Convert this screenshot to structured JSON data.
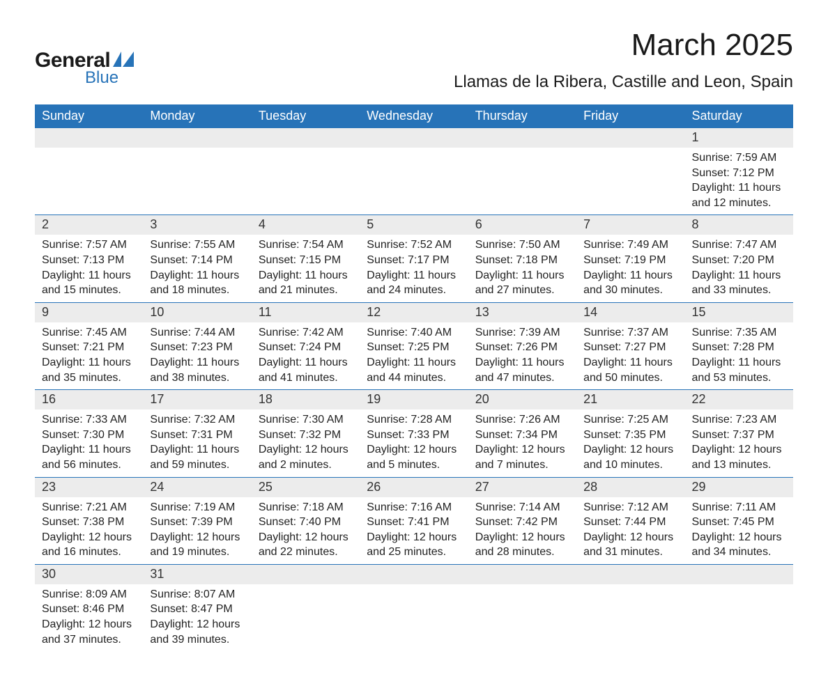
{
  "logo": {
    "general": "General",
    "blue": "Blue",
    "accent_color": "#2773b8"
  },
  "title": "March 2025",
  "subtitle": "Llamas de la Ribera, Castille and Leon, Spain",
  "header_bg": "#2773b8",
  "header_fg": "#ffffff",
  "daynum_bg": "#ececec",
  "border_color": "#2773b8",
  "weekdays": [
    "Sunday",
    "Monday",
    "Tuesday",
    "Wednesday",
    "Thursday",
    "Friday",
    "Saturday"
  ],
  "weeks": [
    [
      null,
      null,
      null,
      null,
      null,
      null,
      {
        "n": 1,
        "sunrise": "7:59 AM",
        "sunset": "7:12 PM",
        "daylight": "11 hours and 12 minutes."
      }
    ],
    [
      {
        "n": 2,
        "sunrise": "7:57 AM",
        "sunset": "7:13 PM",
        "daylight": "11 hours and 15 minutes."
      },
      {
        "n": 3,
        "sunrise": "7:55 AM",
        "sunset": "7:14 PM",
        "daylight": "11 hours and 18 minutes."
      },
      {
        "n": 4,
        "sunrise": "7:54 AM",
        "sunset": "7:15 PM",
        "daylight": "11 hours and 21 minutes."
      },
      {
        "n": 5,
        "sunrise": "7:52 AM",
        "sunset": "7:17 PM",
        "daylight": "11 hours and 24 minutes."
      },
      {
        "n": 6,
        "sunrise": "7:50 AM",
        "sunset": "7:18 PM",
        "daylight": "11 hours and 27 minutes."
      },
      {
        "n": 7,
        "sunrise": "7:49 AM",
        "sunset": "7:19 PM",
        "daylight": "11 hours and 30 minutes."
      },
      {
        "n": 8,
        "sunrise": "7:47 AM",
        "sunset": "7:20 PM",
        "daylight": "11 hours and 33 minutes."
      }
    ],
    [
      {
        "n": 9,
        "sunrise": "7:45 AM",
        "sunset": "7:21 PM",
        "daylight": "11 hours and 35 minutes."
      },
      {
        "n": 10,
        "sunrise": "7:44 AM",
        "sunset": "7:23 PM",
        "daylight": "11 hours and 38 minutes."
      },
      {
        "n": 11,
        "sunrise": "7:42 AM",
        "sunset": "7:24 PM",
        "daylight": "11 hours and 41 minutes."
      },
      {
        "n": 12,
        "sunrise": "7:40 AM",
        "sunset": "7:25 PM",
        "daylight": "11 hours and 44 minutes."
      },
      {
        "n": 13,
        "sunrise": "7:39 AM",
        "sunset": "7:26 PM",
        "daylight": "11 hours and 47 minutes."
      },
      {
        "n": 14,
        "sunrise": "7:37 AM",
        "sunset": "7:27 PM",
        "daylight": "11 hours and 50 minutes."
      },
      {
        "n": 15,
        "sunrise": "7:35 AM",
        "sunset": "7:28 PM",
        "daylight": "11 hours and 53 minutes."
      }
    ],
    [
      {
        "n": 16,
        "sunrise": "7:33 AM",
        "sunset": "7:30 PM",
        "daylight": "11 hours and 56 minutes."
      },
      {
        "n": 17,
        "sunrise": "7:32 AM",
        "sunset": "7:31 PM",
        "daylight": "11 hours and 59 minutes."
      },
      {
        "n": 18,
        "sunrise": "7:30 AM",
        "sunset": "7:32 PM",
        "daylight": "12 hours and 2 minutes."
      },
      {
        "n": 19,
        "sunrise": "7:28 AM",
        "sunset": "7:33 PM",
        "daylight": "12 hours and 5 minutes."
      },
      {
        "n": 20,
        "sunrise": "7:26 AM",
        "sunset": "7:34 PM",
        "daylight": "12 hours and 7 minutes."
      },
      {
        "n": 21,
        "sunrise": "7:25 AM",
        "sunset": "7:35 PM",
        "daylight": "12 hours and 10 minutes."
      },
      {
        "n": 22,
        "sunrise": "7:23 AM",
        "sunset": "7:37 PM",
        "daylight": "12 hours and 13 minutes."
      }
    ],
    [
      {
        "n": 23,
        "sunrise": "7:21 AM",
        "sunset": "7:38 PM",
        "daylight": "12 hours and 16 minutes."
      },
      {
        "n": 24,
        "sunrise": "7:19 AM",
        "sunset": "7:39 PM",
        "daylight": "12 hours and 19 minutes."
      },
      {
        "n": 25,
        "sunrise": "7:18 AM",
        "sunset": "7:40 PM",
        "daylight": "12 hours and 22 minutes."
      },
      {
        "n": 26,
        "sunrise": "7:16 AM",
        "sunset": "7:41 PM",
        "daylight": "12 hours and 25 minutes."
      },
      {
        "n": 27,
        "sunrise": "7:14 AM",
        "sunset": "7:42 PM",
        "daylight": "12 hours and 28 minutes."
      },
      {
        "n": 28,
        "sunrise": "7:12 AM",
        "sunset": "7:44 PM",
        "daylight": "12 hours and 31 minutes."
      },
      {
        "n": 29,
        "sunrise": "7:11 AM",
        "sunset": "7:45 PM",
        "daylight": "12 hours and 34 minutes."
      }
    ],
    [
      {
        "n": 30,
        "sunrise": "8:09 AM",
        "sunset": "8:46 PM",
        "daylight": "12 hours and 37 minutes."
      },
      {
        "n": 31,
        "sunrise": "8:07 AM",
        "sunset": "8:47 PM",
        "daylight": "12 hours and 39 minutes."
      },
      null,
      null,
      null,
      null,
      null
    ]
  ],
  "labels": {
    "sunrise": "Sunrise:",
    "sunset": "Sunset:",
    "daylight": "Daylight:"
  }
}
